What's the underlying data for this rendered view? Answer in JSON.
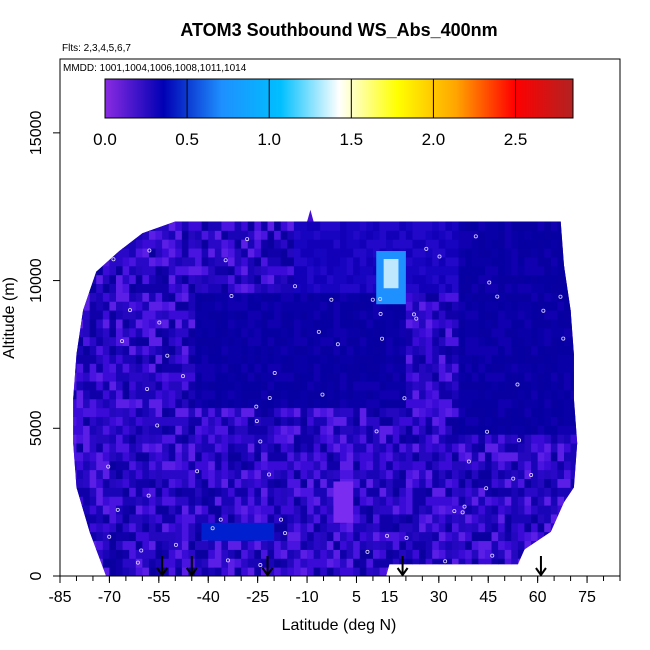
{
  "chart_data": {
    "type": "heatmap",
    "title": "ATOM3 Southbound WS_Abs_400nm",
    "flights_label": "Flts: 2,3,4,5,6,7",
    "dates_label": "MMDD: 1001,1004,1006,1008,1011,1014",
    "xlabel": "Latitude (deg N)",
    "ylabel": "Altitude (m)",
    "xlim": [
      -85,
      85
    ],
    "ylim": [
      0,
      17500
    ],
    "x_tick_labels": [
      "-85",
      "-70",
      "-55",
      "-40",
      "-25",
      "-10",
      "5",
      "15",
      "30",
      "45",
      "60",
      "75"
    ],
    "x_tick_values": [
      -85,
      -70,
      -55,
      -40,
      -25,
      -10,
      5,
      15,
      30,
      45,
      60,
      75
    ],
    "y_tick_labels": [
      "0",
      "5000",
      "10000",
      "15000"
    ],
    "y_tick_values": [
      0,
      5000,
      10000,
      15000
    ],
    "colorbar": {
      "range": [
        0,
        2.85
      ],
      "tick_labels": [
        "0.0",
        "0.5",
        "1.0",
        "1.5",
        "2.0",
        "2.5"
      ],
      "tick_values": [
        0,
        0.5,
        1.0,
        1.5,
        2.0,
        2.5
      ],
      "colors": [
        "#8a2be2",
        "#0000b4",
        "#1e90ff",
        "#00bfff",
        "#ffffff",
        "#ffff00",
        "#ffa500",
        "#ff0000",
        "#b22222"
      ]
    },
    "grid": false,
    "data_extent": {
      "lat_min": -81,
      "lat_max": 71,
      "alt_min": 0,
      "alt_max": 12000
    },
    "features": [
      {
        "label": "high_value_patch",
        "lat": [
          11,
          20
        ],
        "alt": [
          9200,
          11000
        ],
        "value": 1.3
      },
      {
        "label": "low_blue_band",
        "lat": [
          -42,
          -20
        ],
        "alt": [
          1200,
          1800
        ],
        "value": 0.55
      }
    ],
    "arrow_latitudes": [
      -54,
      -45,
      -22,
      19,
      61
    ]
  }
}
